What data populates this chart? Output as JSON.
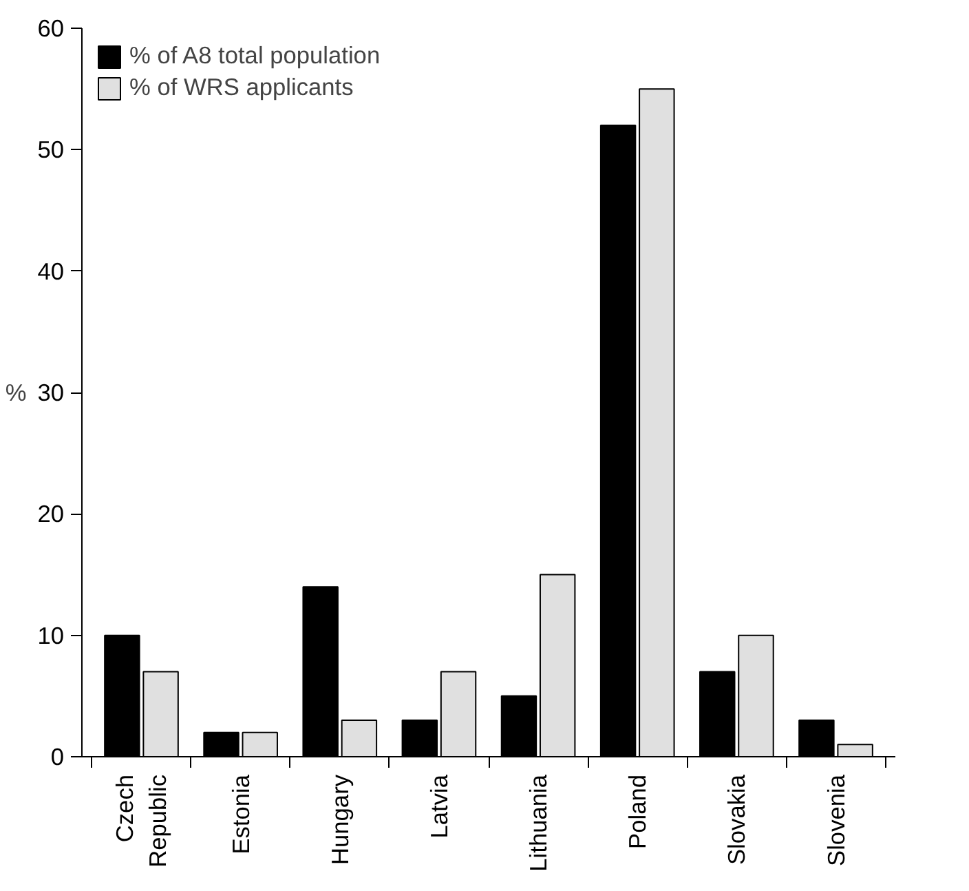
{
  "chart_data": {
    "type": "bar",
    "ylabel": "%",
    "categories": [
      "Czech Republic",
      "Estonia",
      "Hungary",
      "Latvia",
      "Lithuania",
      "Poland",
      "Slovakia",
      "Slovenia"
    ],
    "series": [
      {
        "name": "% of A8 total population",
        "color": "#000000",
        "values": [
          10,
          2,
          14,
          3,
          5,
          52,
          7,
          3
        ]
      },
      {
        "name": "% of WRS applicants",
        "color": "#e0e0e0",
        "values": [
          7,
          2,
          3,
          7,
          15,
          55,
          10,
          1
        ]
      }
    ],
    "ylim": [
      0,
      60
    ],
    "yticks": [
      0,
      10,
      20,
      30,
      40,
      50,
      60
    ],
    "grid": false,
    "legend": "top left"
  }
}
